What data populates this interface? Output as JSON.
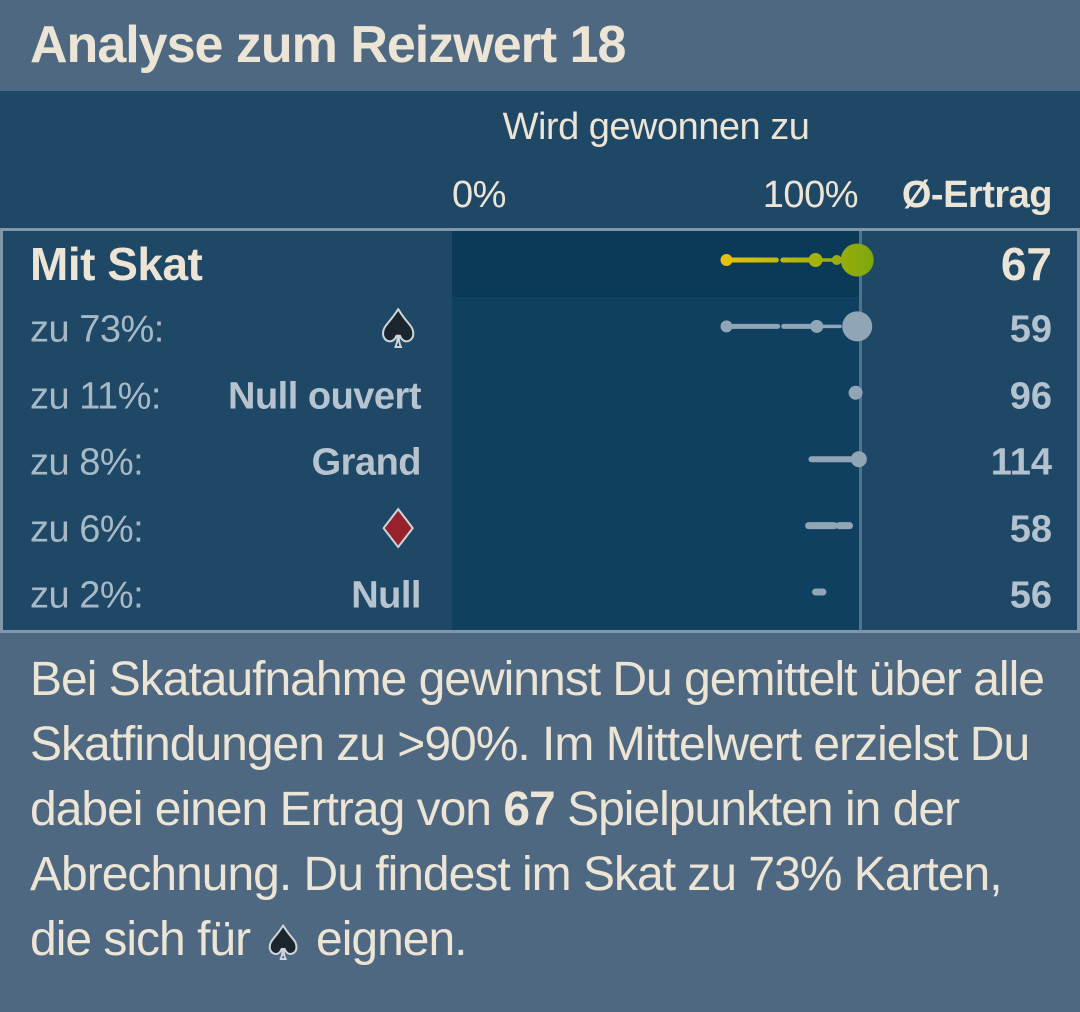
{
  "window": {
    "title": "Analyse zum Reizwert 18"
  },
  "icons": {
    "spade": "♠",
    "diamond": "♦"
  },
  "colors": {
    "header_footer_bg": "#4d6880",
    "table_bg": "#1e4866",
    "chart_bg": "#104060",
    "chart_bg_highlight": "#0a3a57",
    "panel_border": "#8197a9",
    "axis_line": "#4f7491",
    "text_cream": "#ece4d5",
    "text_gray": "#a8b9c6",
    "text_gray_strong": "#b7c4cf",
    "value_gray": "#b3c2ce",
    "marker_gray": "#90a6b6",
    "marker_yellow": "#e9c30d",
    "marker_green": "#7da70c",
    "spade_black": "#1b252d",
    "diamond_red": "#97222e",
    "suit_outline": "#ccd5da"
  },
  "chart_data": {
    "type": "scatter",
    "title": "Wird gewonnen zu",
    "value_column": "Ø-Ertrag",
    "x_axis": {
      "min": 0,
      "max": 100,
      "unit": "%",
      "tick_labels": [
        "0%",
        "100%"
      ]
    },
    "legend_position": "none",
    "grid": false,
    "rows": [
      {
        "label": "Mit Skat",
        "game": "alle Skatfindungen gemittelt",
        "ertrag": "67",
        "win_pct_range": [
          67,
          100
        ],
        "win_pct_mean": 99,
        "highlighted": true,
        "marker": {
          "style": "gradient",
          "segments": [
            [
              67.2,
              79.4,
              5
            ],
            [
              81.0,
              88.0,
              5
            ],
            [
              88.5,
              94.5,
              3.5
            ]
          ],
          "dots": [
            [
              67.2,
              6
            ],
            [
              89.0,
              7
            ],
            [
              94.2,
              5
            ]
          ],
          "mean_dot": [
            99.2,
            16.5
          ]
        }
      },
      {
        "label": "zu 73%:",
        "game": "Pik (♠)",
        "ertrag": "59",
        "win_pct_range": [
          67,
          100
        ],
        "win_pct_mean": 99,
        "marker": {
          "style": "gray",
          "segments": [
            [
              67.2,
              79.7,
              5
            ],
            [
              81.2,
              90.0,
              5
            ],
            [
              90.0,
              95.0,
              3.5
            ]
          ],
          "dots": [
            [
              67.2,
              6
            ],
            [
              89.3,
              6.5
            ]
          ],
          "mean_dot": [
            99.2,
            15
          ]
        }
      },
      {
        "label": "zu 11%:",
        "game": "Null ouvert",
        "ertrag": "96",
        "win_pct_range": [
          98,
          100
        ],
        "win_pct_mean": 99,
        "marker": {
          "style": "gray",
          "segments": [],
          "dots": [
            [
              98.8,
              7
            ]
          ],
          "mean_dot": null
        }
      },
      {
        "label": "zu 8%:",
        "game": "Grand",
        "ertrag": "114",
        "win_pct_range": [
          88,
          100
        ],
        "win_pct_mean": 100,
        "marker": {
          "style": "gray",
          "segments": [
            [
              88.0,
              98.5,
              6
            ]
          ],
          "dots": [
            [
              99.6,
              8
            ]
          ],
          "mean_dot": null
        }
      },
      {
        "label": "zu 6%:",
        "game": "Karo (♦)",
        "ertrag": "58",
        "win_pct_range": [
          87,
          97
        ],
        "win_pct_mean": 93,
        "marker": {
          "style": "gray",
          "segments": [
            [
              87.3,
              93.6,
              7
            ],
            [
              94.8,
              97.3,
              7
            ]
          ],
          "dots": [],
          "mean_dot": null
        }
      },
      {
        "label": "zu 2%:",
        "game": "Null",
        "ertrag": "56",
        "win_pct_range": [
          89,
          91
        ],
        "win_pct_mean": 90,
        "marker": {
          "style": "gray",
          "segments": [
            [
              89.0,
              90.8,
              7
            ]
          ],
          "dots": [],
          "mean_dot": null
        }
      }
    ]
  },
  "footer": {
    "segments": [
      {
        "text": "Bei Skataufnahme gewinnst Du gemittelt über alle Skatfindungen zu >90%. Im Mittelwert erzielst Du dabei einen Ertrag von "
      },
      {
        "text": "67",
        "bold": true
      },
      {
        "text": " Spielpunkten in der Abrechnung. Du findest im Skat zu 73% Karten, die sich für "
      },
      {
        "icon": "spade"
      },
      {
        "text": " eignen."
      }
    ]
  }
}
